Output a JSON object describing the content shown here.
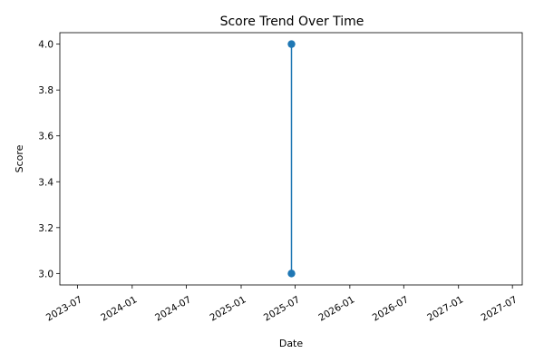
{
  "chart_data": {
    "type": "line",
    "title": "Score Trend Over Time",
    "xlabel": "Date",
    "ylabel": "Score",
    "x_ticks": [
      "2023-07",
      "2024-01",
      "2024-07",
      "2025-01",
      "2025-07",
      "2026-01",
      "2026-07",
      "2027-01",
      "2027-07"
    ],
    "y_ticks": [
      "3.0",
      "3.2",
      "3.4",
      "3.6",
      "3.8",
      "4.0"
    ],
    "xlim": [
      "2023-05-03",
      "2027-08-03"
    ],
    "ylim": [
      2.95,
      4.05
    ],
    "grid": false,
    "series": [
      {
        "x": [
          "2025-06-19",
          "2025-06-19"
        ],
        "y": [
          3,
          4
        ],
        "color": "#1f77b4",
        "marker": "circle"
      }
    ]
  }
}
